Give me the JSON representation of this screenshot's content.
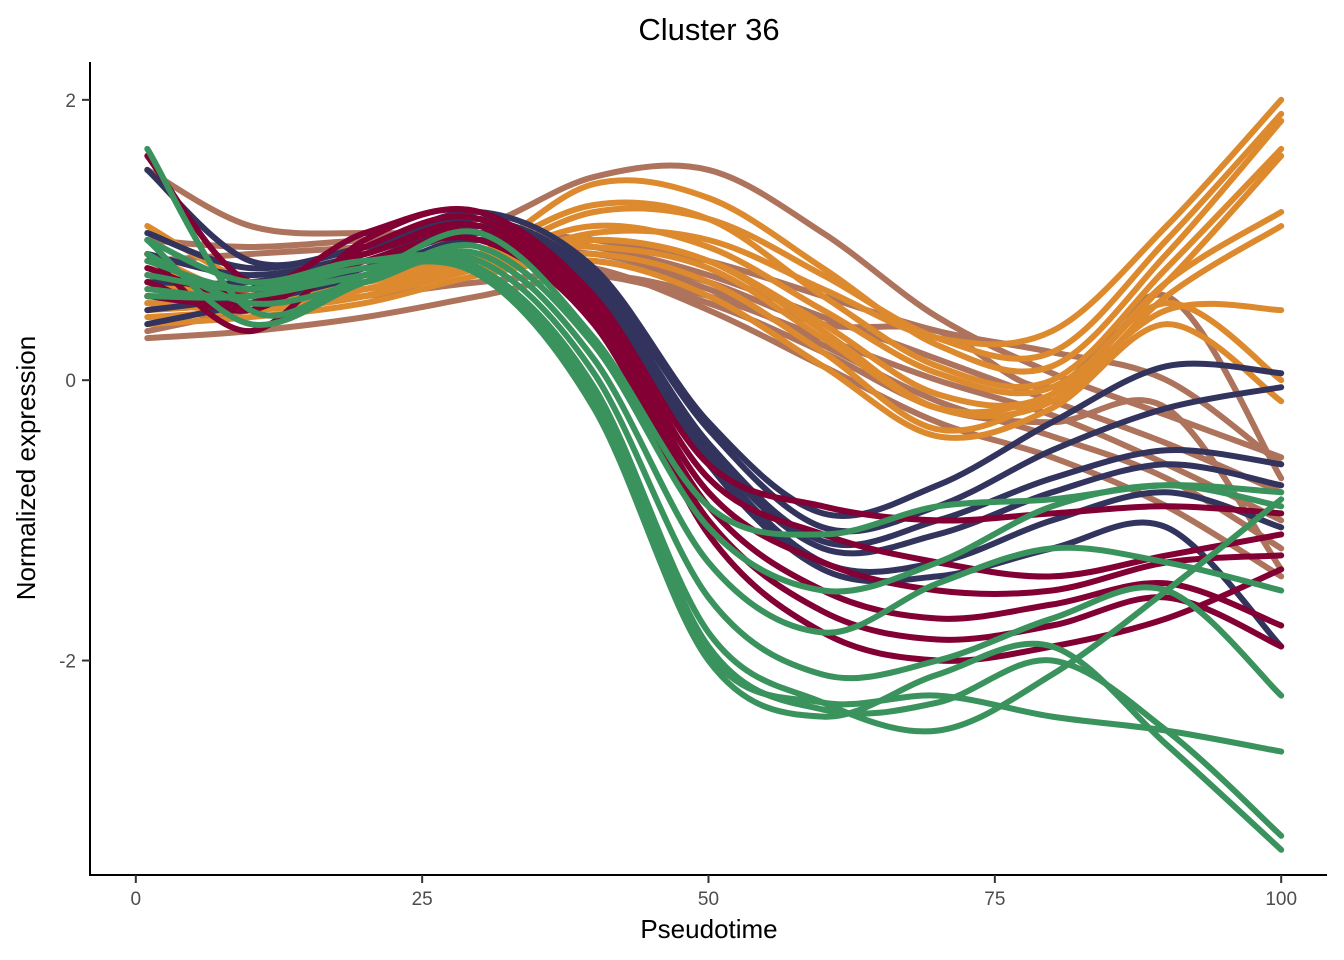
{
  "chart_data": {
    "type": "line",
    "title": "Cluster 36",
    "xlabel": "Pseudotime",
    "ylabel": "Normalized expression",
    "xlim": [
      -4,
      104
    ],
    "ylim": [
      -3.53,
      2.27
    ],
    "x_ticks": [
      0,
      25,
      50,
      75,
      100
    ],
    "x_tick_labels": [
      "0",
      "25",
      "50",
      "75",
      "100"
    ],
    "y_ticks": [
      -2,
      0,
      2
    ],
    "y_tick_labels": [
      "-2",
      "0",
      "2"
    ],
    "grid": false,
    "legend": "none",
    "group_colors": {
      "orange": "#DD8A2E",
      "brown": "#AD735C",
      "navy": "#32345E",
      "crimson": "#820033",
      "green": "#3A925D"
    },
    "series": [
      {
        "group": "orange",
        "x": [
          1,
          10,
          20,
          30,
          40,
          50,
          60,
          70,
          80,
          90,
          100
        ],
        "y": [
          0.5,
          0.55,
          0.65,
          0.8,
          1.05,
          1.0,
          0.65,
          0.3,
          0.35,
          1.1,
          2.0
        ]
      },
      {
        "group": "orange",
        "x": [
          1,
          10,
          20,
          30,
          40,
          50,
          60,
          70,
          80,
          90,
          100
        ],
        "y": [
          0.45,
          0.5,
          0.6,
          0.85,
          1.2,
          1.15,
          0.75,
          0.3,
          0.2,
          1.0,
          1.9
        ]
      },
      {
        "group": "orange",
        "x": [
          1,
          10,
          20,
          30,
          40,
          50,
          60,
          70,
          80,
          90,
          100
        ],
        "y": [
          0.6,
          0.55,
          0.65,
          0.9,
          1.4,
          1.3,
          0.8,
          0.25,
          0.1,
          0.9,
          1.85
        ]
      },
      {
        "group": "orange",
        "x": [
          1,
          10,
          20,
          30,
          40,
          50,
          60,
          70,
          80,
          90,
          100
        ],
        "y": [
          1.1,
          0.7,
          0.6,
          0.9,
          1.25,
          1.15,
          0.6,
          0.1,
          0.0,
          0.8,
          1.65
        ]
      },
      {
        "group": "orange",
        "x": [
          1,
          10,
          20,
          30,
          40,
          50,
          60,
          70,
          80,
          90,
          100
        ],
        "y": [
          0.9,
          0.6,
          0.65,
          0.85,
          1.1,
          0.95,
          0.5,
          0.05,
          -0.05,
          0.7,
          1.6
        ]
      },
      {
        "group": "orange",
        "x": [
          1,
          10,
          20,
          30,
          40,
          50,
          60,
          70,
          80,
          90,
          100
        ],
        "y": [
          0.55,
          0.5,
          0.6,
          0.8,
          1.0,
          0.85,
          0.4,
          -0.1,
          -0.1,
          0.7,
          1.2
        ]
      },
      {
        "group": "orange",
        "x": [
          1,
          10,
          20,
          30,
          40,
          50,
          60,
          70,
          80,
          90,
          100
        ],
        "y": [
          0.7,
          0.6,
          0.7,
          0.85,
          1.0,
          0.85,
          0.35,
          -0.2,
          -0.15,
          0.6,
          1.1
        ]
      },
      {
        "group": "orange",
        "x": [
          1,
          10,
          20,
          30,
          40,
          50,
          60,
          70,
          80,
          90,
          100
        ],
        "y": [
          0.8,
          0.65,
          0.7,
          0.9,
          0.95,
          0.8,
          0.3,
          -0.2,
          -0.1,
          0.5,
          0.5
        ]
      },
      {
        "group": "orange",
        "x": [
          1,
          10,
          20,
          30,
          40,
          50,
          60,
          70,
          80,
          90,
          100
        ],
        "y": [
          0.65,
          0.6,
          0.65,
          0.8,
          0.9,
          0.7,
          0.2,
          -0.35,
          -0.1,
          0.55,
          0.0
        ]
      },
      {
        "group": "orange",
        "x": [
          1,
          10,
          20,
          30,
          40,
          50,
          60,
          70,
          80,
          90,
          100
        ],
        "y": [
          0.4,
          0.45,
          0.55,
          0.75,
          0.85,
          0.6,
          0.1,
          -0.4,
          -0.2,
          0.4,
          -0.15
        ]
      },
      {
        "group": "brown",
        "x": [
          1,
          10,
          20,
          30,
          40,
          50,
          60,
          70,
          80,
          90,
          100
        ],
        "y": [
          1.5,
          1.1,
          1.05,
          1.1,
          1.45,
          1.5,
          1.05,
          0.45,
          0.05,
          -0.25,
          -0.55
        ]
      },
      {
        "group": "brown",
        "x": [
          1,
          10,
          20,
          30,
          40,
          50,
          60,
          70,
          80,
          90,
          100
        ],
        "y": [
          1.0,
          0.95,
          1.0,
          1.05,
          1.0,
          0.85,
          0.6,
          0.35,
          0.2,
          0.0,
          -0.6
        ]
      },
      {
        "group": "brown",
        "x": [
          1,
          10,
          20,
          30,
          40,
          50,
          60,
          70,
          80,
          90,
          100
        ],
        "y": [
          0.85,
          0.9,
          0.95,
          1.0,
          0.95,
          0.75,
          0.45,
          0.15,
          -0.15,
          -0.45,
          -0.8
        ]
      },
      {
        "group": "brown",
        "x": [
          1,
          10,
          20,
          30,
          40,
          50,
          60,
          70,
          80,
          90,
          100
        ],
        "y": [
          0.3,
          0.35,
          0.45,
          0.6,
          0.75,
          0.6,
          0.3,
          0.0,
          -0.25,
          -0.6,
          -1.0
        ]
      },
      {
        "group": "brown",
        "x": [
          1,
          10,
          20,
          30,
          40,
          50,
          60,
          70,
          80,
          90,
          100
        ],
        "y": [
          0.35,
          0.5,
          0.65,
          0.8,
          0.85,
          0.65,
          0.25,
          -0.15,
          -0.4,
          -0.7,
          -1.2
        ]
      },
      {
        "group": "brown",
        "x": [
          1,
          10,
          20,
          30,
          40,
          50,
          60,
          70,
          80,
          90,
          100
        ],
        "y": [
          0.6,
          0.6,
          0.7,
          0.85,
          0.8,
          0.5,
          0.1,
          -0.3,
          -0.55,
          -0.9,
          -1.4
        ]
      },
      {
        "group": "brown",
        "x": [
          1,
          10,
          20,
          30,
          40,
          50,
          60,
          70,
          80,
          90,
          100
        ],
        "y": [
          0.7,
          0.65,
          0.75,
          0.9,
          0.9,
          0.7,
          0.4,
          0.35,
          -0.05,
          0.6,
          -0.7
        ]
      },
      {
        "group": "brown",
        "x": [
          1,
          10,
          20,
          30,
          40,
          50,
          60,
          70,
          80,
          90,
          100
        ],
        "y": [
          0.55,
          0.55,
          0.6,
          0.7,
          0.75,
          0.55,
          0.2,
          -0.2,
          -0.3,
          -0.2,
          -1.35
        ]
      },
      {
        "group": "navy",
        "x": [
          1,
          10,
          20,
          30,
          40,
          50,
          60,
          70,
          80,
          90,
          100
        ],
        "y": [
          1.05,
          0.8,
          0.95,
          1.2,
          0.8,
          -0.3,
          -0.95,
          -0.75,
          -0.3,
          0.1,
          0.05
        ]
      },
      {
        "group": "navy",
        "x": [
          1,
          10,
          20,
          30,
          40,
          50,
          60,
          70,
          80,
          90,
          100
        ],
        "y": [
          0.9,
          0.75,
          0.9,
          1.15,
          0.75,
          -0.35,
          -1.05,
          -0.9,
          -0.5,
          -0.2,
          -0.05
        ]
      },
      {
        "group": "navy",
        "x": [
          1,
          10,
          20,
          30,
          40,
          50,
          60,
          70,
          80,
          90,
          100
        ],
        "y": [
          0.7,
          0.7,
          0.85,
          1.1,
          0.7,
          -0.45,
          -1.15,
          -1.0,
          -0.7,
          -0.5,
          -0.6
        ]
      },
      {
        "group": "navy",
        "x": [
          1,
          10,
          20,
          30,
          40,
          50,
          60,
          70,
          80,
          90,
          100
        ],
        "y": [
          0.5,
          0.6,
          0.8,
          1.05,
          0.65,
          -0.5,
          -1.2,
          -1.1,
          -0.8,
          -0.6,
          -0.75
        ]
      },
      {
        "group": "navy",
        "x": [
          1,
          10,
          20,
          30,
          40,
          50,
          60,
          70,
          80,
          90,
          100
        ],
        "y": [
          0.4,
          0.55,
          0.75,
          1.0,
          0.6,
          -0.55,
          -1.3,
          -1.3,
          -1.0,
          -0.8,
          -1.05
        ]
      },
      {
        "group": "navy",
        "x": [
          1,
          10,
          20,
          30,
          40,
          50,
          60,
          70,
          80,
          90,
          100
        ],
        "y": [
          1.5,
          0.85,
          0.95,
          1.15,
          0.7,
          -0.6,
          -1.35,
          -1.4,
          -1.2,
          -1.05,
          -1.9
        ]
      },
      {
        "group": "crimson",
        "x": [
          1,
          10,
          20,
          30,
          40,
          50,
          60,
          70,
          80,
          90,
          100
        ],
        "y": [
          1.6,
          0.7,
          1.05,
          1.2,
          0.6,
          -0.6,
          -0.9,
          -1.0,
          -0.95,
          -0.9,
          -0.95
        ]
      },
      {
        "group": "crimson",
        "x": [
          1,
          10,
          20,
          30,
          40,
          50,
          60,
          70,
          80,
          90,
          100
        ],
        "y": [
          0.9,
          0.35,
          1.0,
          1.2,
          0.55,
          -0.7,
          -1.1,
          -1.3,
          -1.4,
          -1.25,
          -1.1
        ]
      },
      {
        "group": "crimson",
        "x": [
          1,
          10,
          20,
          30,
          40,
          50,
          60,
          70,
          80,
          90,
          100
        ],
        "y": [
          0.7,
          0.5,
          0.95,
          1.15,
          0.5,
          -0.8,
          -1.3,
          -1.5,
          -1.5,
          -1.3,
          -1.25
        ]
      },
      {
        "group": "crimson",
        "x": [
          1,
          10,
          20,
          30,
          40,
          50,
          60,
          70,
          80,
          90,
          100
        ],
        "y": [
          0.8,
          0.6,
          0.9,
          1.05,
          0.45,
          -0.9,
          -1.5,
          -1.7,
          -1.6,
          -1.45,
          -1.75
        ]
      },
      {
        "group": "crimson",
        "x": [
          1,
          10,
          20,
          30,
          40,
          50,
          60,
          70,
          80,
          90,
          100
        ],
        "y": [
          0.6,
          0.55,
          0.85,
          1.0,
          0.4,
          -1.0,
          -1.65,
          -1.85,
          -1.75,
          -1.55,
          -1.9
        ]
      },
      {
        "group": "crimson",
        "x": [
          1,
          10,
          20,
          30,
          40,
          50,
          60,
          70,
          80,
          90,
          100
        ],
        "y": [
          0.75,
          0.65,
          0.9,
          1.1,
          0.45,
          -1.1,
          -1.8,
          -2.0,
          -1.9,
          -1.7,
          -1.35
        ]
      },
      {
        "group": "green",
        "x": [
          1,
          10,
          20,
          30,
          40,
          50,
          60,
          70,
          80,
          90,
          100
        ],
        "y": [
          1.65,
          0.5,
          0.75,
          1.05,
          0.3,
          -0.9,
          -1.1,
          -0.9,
          -0.85,
          -0.75,
          -0.8
        ]
      },
      {
        "group": "green",
        "x": [
          1,
          10,
          20,
          30,
          40,
          50,
          60,
          70,
          80,
          90,
          100
        ],
        "y": [
          1.0,
          0.4,
          0.7,
          0.95,
          0.25,
          -1.05,
          -1.5,
          -1.3,
          -0.9,
          -0.75,
          -0.9
        ]
      },
      {
        "group": "green",
        "x": [
          1,
          10,
          20,
          30,
          40,
          50,
          60,
          70,
          80,
          90,
          100
        ],
        "y": [
          0.9,
          0.55,
          0.7,
          0.9,
          0.15,
          -1.3,
          -1.8,
          -1.45,
          -1.2,
          -1.3,
          -1.5
        ]
      },
      {
        "group": "green",
        "x": [
          1,
          10,
          20,
          30,
          40,
          50,
          60,
          70,
          80,
          90,
          100
        ],
        "y": [
          0.6,
          0.6,
          0.75,
          0.85,
          0.05,
          -1.55,
          -2.1,
          -2.0,
          -1.7,
          -1.5,
          -2.25
        ]
      },
      {
        "group": "green",
        "x": [
          1,
          10,
          20,
          30,
          40,
          50,
          60,
          70,
          80,
          90,
          100
        ],
        "y": [
          0.75,
          0.65,
          0.8,
          0.8,
          -0.05,
          -1.8,
          -2.3,
          -2.5,
          -2.1,
          -1.5,
          -0.85
        ]
      },
      {
        "group": "green",
        "x": [
          1,
          10,
          20,
          30,
          40,
          50,
          60,
          70,
          80,
          90,
          100
        ],
        "y": [
          1.0,
          0.7,
          0.85,
          0.75,
          -0.15,
          -1.95,
          -2.3,
          -2.25,
          -2.4,
          -2.5,
          -2.65
        ]
      },
      {
        "group": "green",
        "x": [
          1,
          10,
          20,
          30,
          40,
          50,
          60,
          70,
          80,
          90,
          100
        ],
        "y": [
          0.65,
          0.6,
          0.8,
          0.75,
          -0.2,
          -2.0,
          -2.4,
          -2.1,
          -1.9,
          -2.6,
          -3.35
        ]
      },
      {
        "group": "green",
        "x": [
          1,
          10,
          20,
          30,
          40,
          50,
          60,
          70,
          80,
          90,
          100
        ],
        "y": [
          0.85,
          0.65,
          0.85,
          0.8,
          -0.1,
          -1.9,
          -2.35,
          -2.3,
          -2.0,
          -2.5,
          -3.25
        ]
      }
    ]
  }
}
